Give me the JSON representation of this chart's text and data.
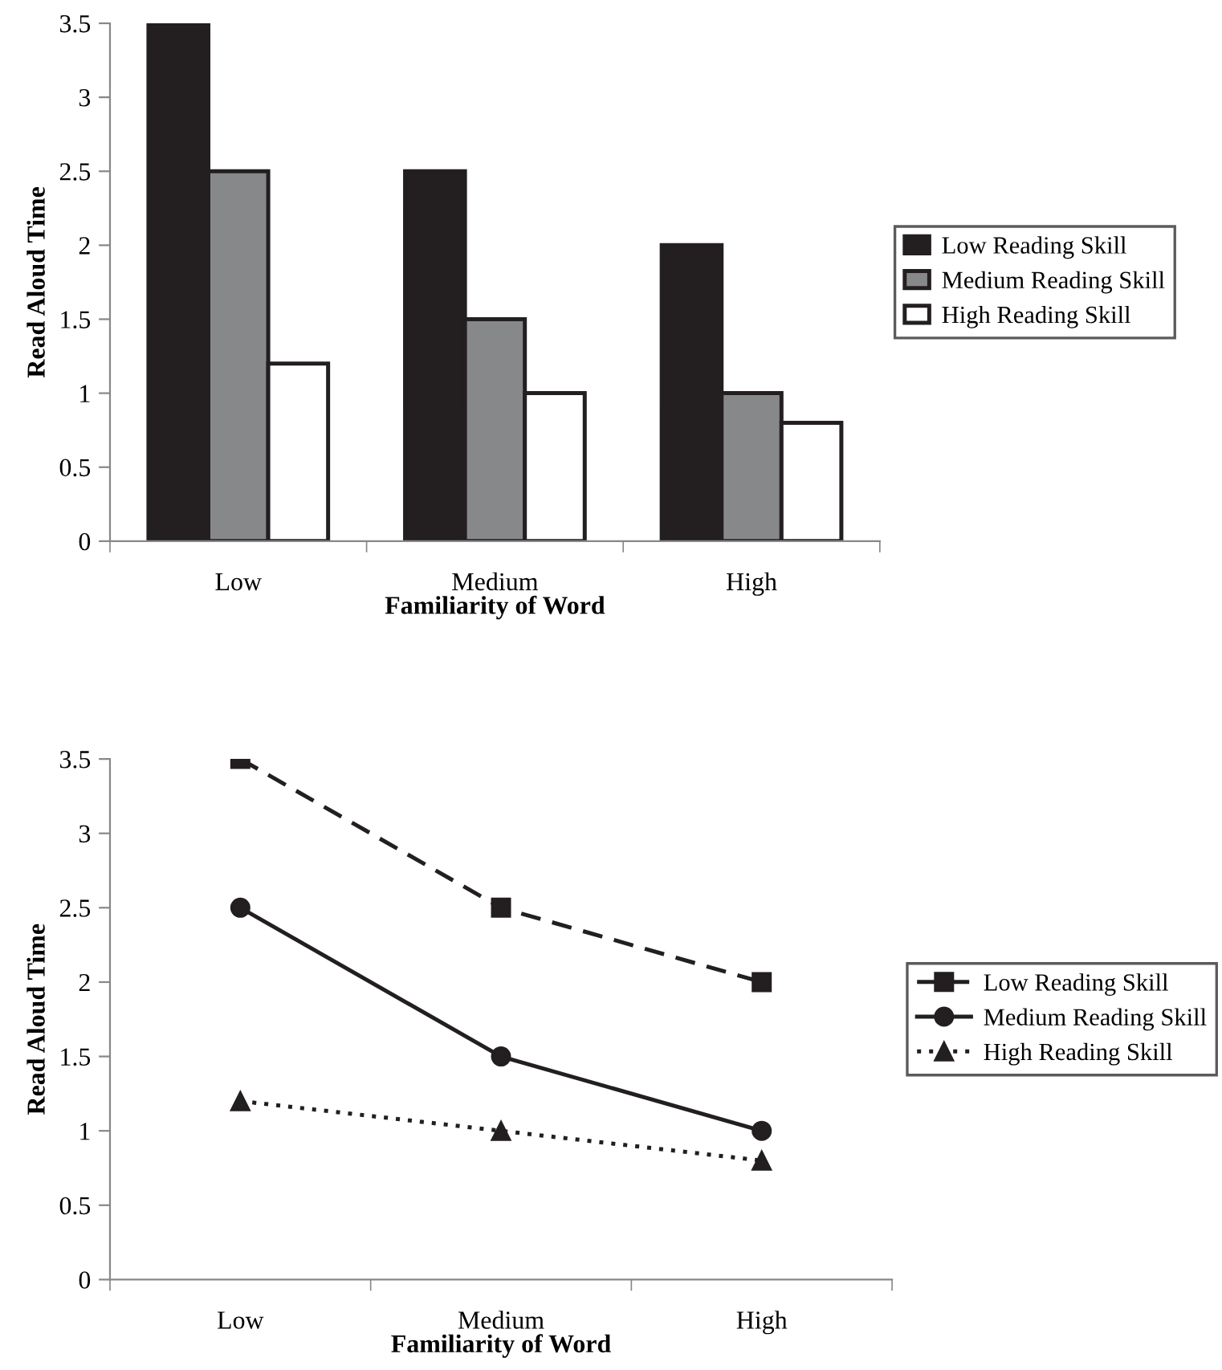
{
  "chart_data": [
    {
      "type": "bar",
      "xlabel": "Familiarity of Word",
      "ylabel": "Read Aloud Time",
      "categories": [
        "Low",
        "Medium",
        "High"
      ],
      "series": [
        {
          "name": "Low Reading Skill",
          "color": "#231f20",
          "values": [
            3.5,
            2.5,
            2
          ]
        },
        {
          "name": "Medium Reading Skill",
          "color": "#87888a",
          "values": [
            2.5,
            1.5,
            1
          ]
        },
        {
          "name": "High Reading Skill",
          "color": "#ffffff",
          "values": [
            1.2,
            1,
            0.8
          ]
        }
      ],
      "ylim": [
        0,
        3.5
      ],
      "yticks": [
        0,
        0.5,
        1,
        1.5,
        2,
        2.5,
        3,
        3.5
      ],
      "grid": false,
      "legend": "right"
    },
    {
      "type": "line",
      "xlabel": "Familiarity of Word",
      "ylabel": "Read Aloud Time",
      "categories": [
        "Low",
        "Medium",
        "High"
      ],
      "series": [
        {
          "name": "Low Reading Skill",
          "color": "#231f20",
          "values": [
            3.5,
            2.5,
            2
          ],
          "marker": "square",
          "line_style": "dashed"
        },
        {
          "name": "Medium Reading Skill",
          "color": "#231f20",
          "values": [
            2.5,
            1.5,
            1
          ],
          "marker": "circle",
          "line_style": "solid"
        },
        {
          "name": "High Reading Skill",
          "color": "#231f20",
          "values": [
            1.2,
            1,
            0.8
          ],
          "marker": "triangle",
          "line_style": "dotted"
        }
      ],
      "ylim": [
        0,
        3.5
      ],
      "yticks": [
        0,
        0.5,
        1,
        1.5,
        2,
        2.5,
        3,
        3.5
      ],
      "grid": false,
      "legend": "right"
    }
  ]
}
